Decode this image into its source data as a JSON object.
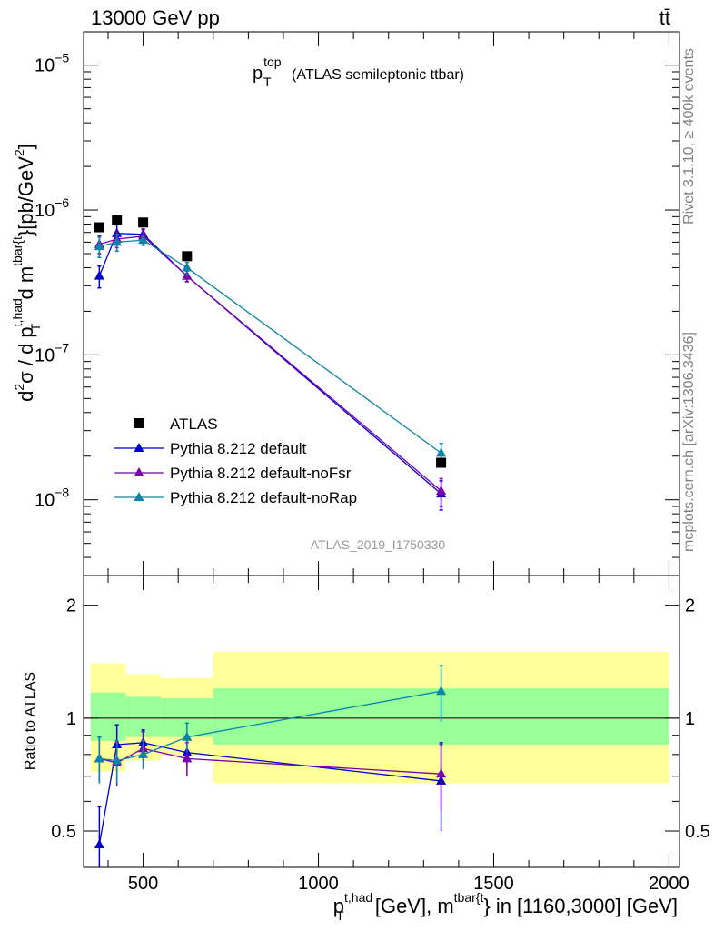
{
  "header": {
    "energy_label": "13000 GeV pp",
    "process_label": "tt̄"
  },
  "side_labels": {
    "rivet": "Rivet 3.1.10, ≥ 400k events",
    "mcplots": "mcplots.cern.ch [arXiv:1306.3436]"
  },
  "colors": {
    "atlas": "#000000",
    "default": "#0000cc",
    "noFsr": "#7a00b0",
    "noRap": "#0a85a8",
    "band_outer": "#ffff99",
    "band_inner": "#99ff99"
  },
  "chart_data": [
    {
      "panel": "main",
      "type": "line",
      "title_main": "p",
      "title_sup": "top",
      "title_sub": "T",
      "title_rest": "(ATLAS semileptonic ttbar)",
      "watermark": "ATLAS_2019_I1750330",
      "yscale": "log",
      "ylim": [
        3e-09,
        1.7e-05
      ],
      "xlim": [
        330,
        2030
      ],
      "ylabel_parts": [
        "d",
        "2",
        "σ / d p",
        "t,had",
        "T",
        " d m",
        "tbar{t",
        "}[pb/GeV",
        "2",
        "]"
      ],
      "yticks": [
        {
          "value": 1e-08,
          "base": "10",
          "exp": "−8"
        },
        {
          "value": 1e-07,
          "base": "10",
          "exp": "−7"
        },
        {
          "value": 1e-06,
          "base": "10",
          "exp": "−6"
        },
        {
          "value": 1e-05,
          "base": "10",
          "exp": "−5"
        }
      ],
      "legend": [
        {
          "key": "atlas",
          "label": "ATLAS",
          "marker": "square"
        },
        {
          "key": "default",
          "label": "Pythia 8.212 default",
          "marker": "triangle"
        },
        {
          "key": "noFsr",
          "label": "Pythia 8.212 default-noFsr",
          "marker": "triangle"
        },
        {
          "key": "noRap",
          "label": "Pythia 8.212 default-noRap",
          "marker": "triangle"
        }
      ],
      "data": {
        "x": [
          375,
          425,
          500,
          625,
          1350
        ],
        "bins": [
          [
            350,
            400
          ],
          [
            400,
            450
          ],
          [
            450,
            550
          ],
          [
            550,
            700
          ],
          [
            700,
            2000
          ]
        ],
        "atlas": [
          7.6e-07,
          8.5e-07,
          8.2e-07,
          4.8e-07,
          1.8e-08
        ],
        "series": [
          {
            "key": "default",
            "values": [
              3.5e-07,
              6.9e-07,
              6.8e-07,
              3.5e-07,
              1.1e-08
            ],
            "err": [
              6e-08,
              1e-07,
              6e-08,
              3e-08,
              2.5e-09
            ]
          },
          {
            "key": "noFsr",
            "values": [
              5.8e-07,
              6.3e-07,
              6.6e-07,
              3.5e-07,
              1.15e-08
            ],
            "err": [
              8e-08,
              8e-08,
              7e-08,
              3e-08,
              2.5e-09
            ]
          },
          {
            "key": "noRap",
            "values": [
              5.6e-07,
              6e-07,
              6.2e-07,
              4e-07,
              2.1e-08
            ],
            "err": [
              9e-08,
              8e-08,
              5e-08,
              3.5e-08,
              3.5e-09
            ]
          }
        ]
      }
    },
    {
      "panel": "ratio",
      "type": "line",
      "yscale": "log",
      "ylim": [
        0.4,
        2.4
      ],
      "xlim": [
        330,
        2030
      ],
      "ylabel": "Ratio to ATLAS",
      "yticks": [
        {
          "value": 0.5,
          "label": "0.5"
        },
        {
          "value": 1,
          "label": "1"
        },
        {
          "value": 2,
          "label": "2"
        }
      ],
      "xticks": [
        {
          "value": 500,
          "label": "500"
        },
        {
          "value": 1000,
          "label": "1000"
        },
        {
          "value": 1500,
          "label": "1500"
        },
        {
          "value": 2000,
          "label": "2000"
        }
      ],
      "xlabel_parts": [
        "p",
        "t,had",
        "T",
        " [GeV], m",
        "tbar{t",
        "} in [1160,3000] [GeV]"
      ],
      "bands": [
        {
          "x0": 350,
          "x1": 400,
          "outer": [
            0.72,
            1.4
          ],
          "inner": [
            0.87,
            1.17
          ]
        },
        {
          "x0": 400,
          "x1": 450,
          "outer": [
            0.72,
            1.4
          ],
          "inner": [
            0.87,
            1.17
          ]
        },
        {
          "x0": 450,
          "x1": 550,
          "outer": [
            0.77,
            1.31
          ],
          "inner": [
            0.89,
            1.14
          ]
        },
        {
          "x0": 550,
          "x1": 700,
          "outer": [
            0.79,
            1.28
          ],
          "inner": [
            0.89,
            1.13
          ]
        },
        {
          "x0": 700,
          "x1": 2000,
          "outer": [
            0.67,
            1.5
          ],
          "inner": [
            0.85,
            1.2
          ]
        }
      ],
      "series": [
        {
          "key": "default",
          "x": [
            375,
            425,
            500,
            625,
            1350
          ],
          "values": [
            0.46,
            0.85,
            0.86,
            0.81,
            0.68
          ],
          "err": [
            0.12,
            0.11,
            0.07,
            0.07,
            0.18
          ]
        },
        {
          "key": "noFsr",
          "x": [
            375,
            425,
            500,
            625,
            1350
          ],
          "values": [
            0.78,
            0.76,
            0.83,
            0.78,
            0.71
          ],
          "err": [
            0.11,
            0.1,
            0.09,
            0.08,
            0.14
          ]
        },
        {
          "key": "noRap",
          "x": [
            375,
            425,
            500,
            625,
            1350
          ],
          "values": [
            0.78,
            0.77,
            0.8,
            0.89,
            1.18
          ],
          "err": [
            0.11,
            0.1,
            0.07,
            0.08,
            0.2
          ]
        }
      ]
    }
  ]
}
